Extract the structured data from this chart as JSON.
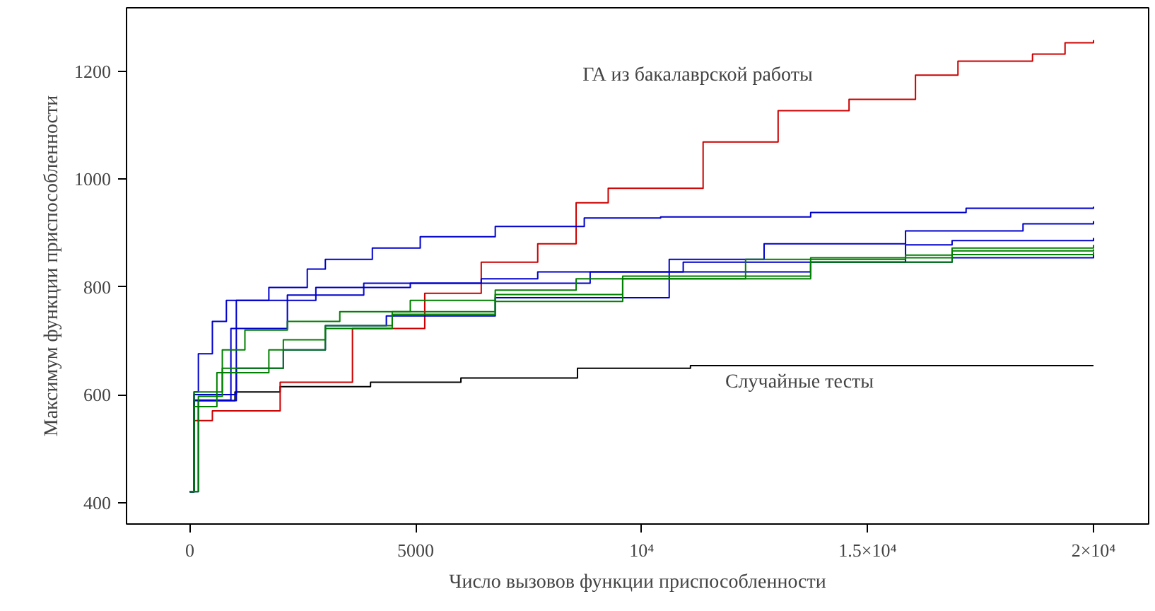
{
  "chart_data": {
    "type": "step",
    "xlabel": "Число вызовов функции приспособленности",
    "ylabel": "Максимум функции приспособленности",
    "xlim": [
      -1400,
      21220
    ],
    "ylim": [
      360,
      1318
    ],
    "xticks": [
      0,
      5000,
      {
        "value": 10000,
        "label": "10⁴"
      },
      {
        "value": 15000,
        "label": "1.5×10⁴"
      },
      {
        "value": 20000,
        "label": "2×10⁴"
      }
    ],
    "yticks": [
      400,
      600,
      800,
      1000,
      1200
    ],
    "grid": false,
    "line_style": "solid",
    "annotations": [
      "ГА из бакалаврской работы",
      "Случайные тесты"
    ],
    "series": [
      {
        "color": "#000000",
        "x": [
          0,
          100,
          1000,
          2000,
          4000,
          6000,
          8580,
          11080,
          20000
        ],
        "values": [
          420,
          589,
          605,
          615,
          623,
          631,
          649,
          654,
          654
        ]
      },
      {
        "color": "#cc0000",
        "x": [
          0,
          100,
          500,
          2000,
          3600,
          5200,
          6450,
          7700,
          8550,
          9260,
          11360,
          13020,
          14590,
          16060,
          17000,
          18650,
          19370,
          20000
        ],
        "values": [
          420,
          552,
          570,
          623,
          723,
          788,
          846,
          880,
          956,
          983,
          1069,
          1127,
          1148,
          1193,
          1219,
          1232,
          1253,
          1258
        ]
      },
      {
        "color": "#0000cc",
        "x": [
          0,
          94,
          190,
          500,
          810,
          1750,
          2600,
          3000,
          4040,
          5100,
          6760,
          8730,
          10420,
          13740,
          17180,
          20000
        ],
        "values": [
          420,
          605,
          676,
          736,
          775,
          799,
          833,
          851,
          872,
          893,
          912,
          928,
          930,
          938,
          946,
          949
        ]
      },
      {
        "color": "#0000cc",
        "x": [
          0,
          94,
          1030,
          2790,
          4880,
          6450,
          7700,
          10610,
          12710,
          15840,
          18440,
          20000
        ],
        "values": [
          420,
          600,
          775,
          799,
          807,
          815,
          828,
          851,
          880,
          904,
          917,
          922
        ]
      },
      {
        "color": "#0000cc",
        "x": [
          0,
          94,
          910,
          2160,
          3850,
          6450,
          8860,
          10920,
          15840,
          16870,
          20000
        ],
        "values": [
          420,
          590,
          723,
          785,
          807,
          807,
          828,
          846,
          878,
          886,
          891
        ]
      },
      {
        "color": "#0000cc",
        "x": [
          0,
          190,
          1030,
          2070,
          3000,
          4350,
          6760,
          10610,
          13740,
          16870,
          20000
        ],
        "values": [
          420,
          589,
          649,
          683,
          728,
          746,
          780,
          828,
          846,
          854,
          859
        ]
      },
      {
        "color": "#008000",
        "x": [
          0,
          94,
          720,
          1220,
          2160,
          3320,
          4880,
          6760,
          8550,
          12300,
          15840,
          16870,
          20000
        ],
        "values": [
          420,
          605,
          683,
          720,
          736,
          754,
          775,
          794,
          815,
          851,
          859,
          872,
          878
        ]
      },
      {
        "color": "#008000",
        "x": [
          0,
          190,
          720,
          2070,
          3000,
          4480,
          6760,
          9580,
          13740,
          16870,
          20000
        ],
        "values": [
          420,
          597,
          649,
          702,
          728,
          754,
          773,
          820,
          854,
          867,
          870
        ]
      },
      {
        "color": "#008000",
        "x": [
          0,
          94,
          600,
          1750,
          3000,
          4480,
          6760,
          9580,
          13740,
          16870,
          20000
        ],
        "values": [
          420,
          578,
          641,
          683,
          723,
          749,
          786,
          815,
          846,
          860,
          865
        ]
      }
    ]
  }
}
